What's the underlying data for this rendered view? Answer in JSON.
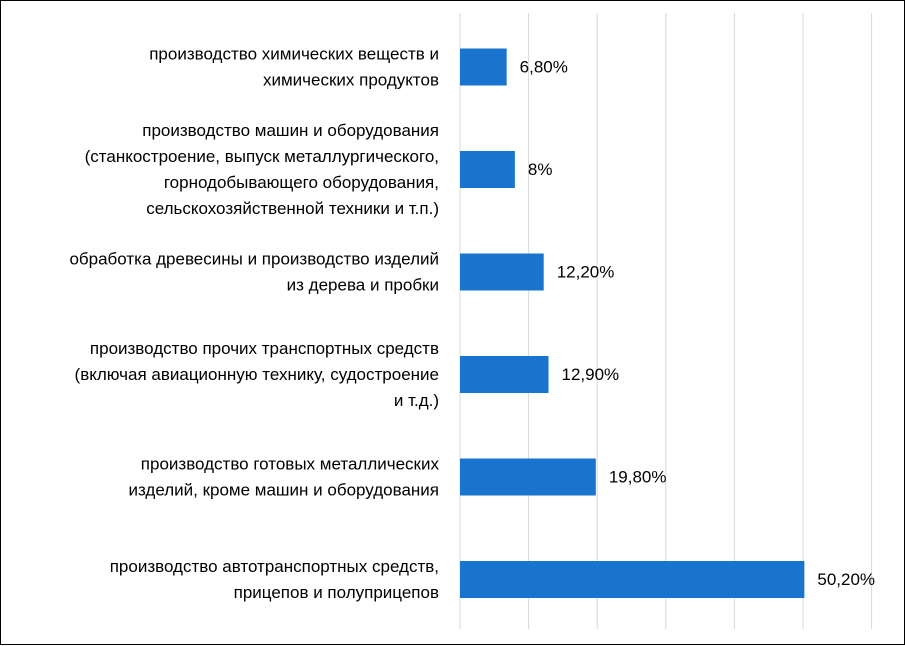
{
  "colors": {
    "bar": "#1874CD",
    "grid": "#D9D9D9",
    "text": "#000000",
    "border": "#000000",
    "background": "#FFFFFF"
  },
  "chart_data": {
    "type": "bar",
    "orientation": "horizontal",
    "title": "",
    "xlabel": "",
    "ylabel": "",
    "categories": [
      [
        "производство химических веществ и",
        "химических продуктов"
      ],
      [
        "производство машин и оборудования",
        "(станкостроение, выпуск металлургического,",
        "горнодобывающего оборудования,",
        "сельскохозяйственной техники и т.п.)"
      ],
      [
        "обработка древесины и производство изделий",
        "из дерева и пробки"
      ],
      [
        "производство прочих транспортных средств",
        "(включая авиационную технику, судостроение",
        "и т.д.)"
      ],
      [
        "производство готовых металлических",
        "изделий, кроме машин и оборудования"
      ],
      [
        "производство автотранспортных средств,",
        "прицепов и полуприцепов"
      ]
    ],
    "values": [
      6.8,
      8.0,
      12.2,
      12.9,
      19.8,
      50.2
    ],
    "value_labels": [
      "6,80%",
      "8%",
      "12,20%",
      "12,90%",
      "19,80%",
      "50,20%"
    ],
    "xlim": [
      0,
      60
    ],
    "x_grid_step": 10,
    "grid": true,
    "legend": "none",
    "tick_labels_shown": false
  }
}
